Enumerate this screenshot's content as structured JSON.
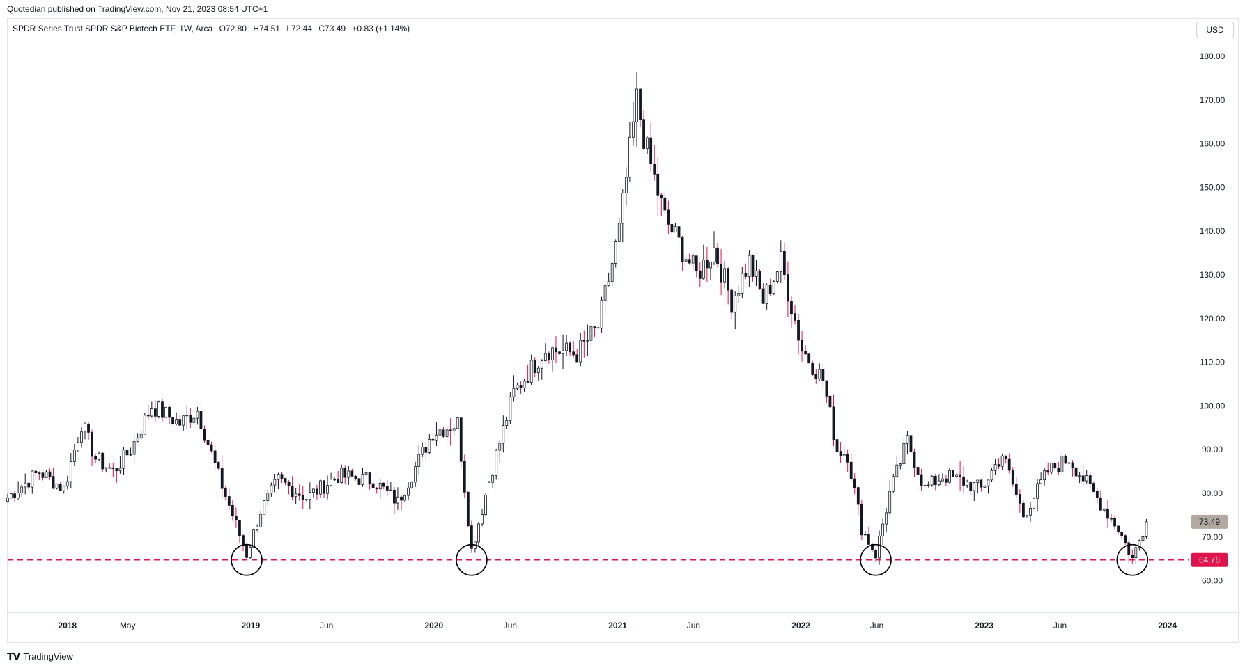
{
  "header": {
    "published": "Quotedian published on TradingView.com, Nov 21, 2023 08:54 UTC+1"
  },
  "symbol": {
    "name": "SPDR Series Trust SPDR S&P Biotech ETF, 1W, Arca",
    "open": "O72.80",
    "high": "H74.51",
    "low": "L72.44",
    "close": "C73.49",
    "change": "+0.83 (+1.14%)"
  },
  "currency": "USD",
  "footer": {
    "brand": "TradingView",
    "logo": "tradingview-logo-icon"
  },
  "colors": {
    "up": "#ffffff",
    "down": "#131722",
    "up_wick": "#131722",
    "accent": "#e0144c",
    "last_price_bg": "#b2aaa1"
  },
  "chart_data": {
    "type": "candlestick",
    "interval": "1W",
    "ylim": [
      55,
      185
    ],
    "y_ticks": [
      "180.00",
      "170.00",
      "160.00",
      "150.00",
      "140.00",
      "130.00",
      "120.00",
      "110.00",
      "100.00",
      "90.00",
      "80.00",
      "70.00",
      "60.00"
    ],
    "y_tick_values": [
      180,
      170,
      160,
      150,
      140,
      130,
      120,
      110,
      100,
      90,
      80,
      70,
      60
    ],
    "x_ticks": [
      "2018",
      "May",
      "2019",
      "Jun",
      "2020",
      "Jun",
      "2021",
      "Jun",
      "2022",
      "Jun",
      "2023",
      "Jun",
      "2024"
    ],
    "x_tick_dates": [
      "2018-01-01",
      "2018-05-01",
      "2019-01-01",
      "2019-06-01",
      "2020-01-01",
      "2020-06-01",
      "2021-01-01",
      "2021-06-01",
      "2022-01-01",
      "2022-06-01",
      "2023-01-01",
      "2023-06-01",
      "2024-01-01"
    ],
    "x_range": [
      "2017-09-04",
      "2024-02-12"
    ],
    "last_price": "73.49",
    "support": {
      "label": "64.76",
      "value": 64.76
    },
    "circled_lows": [
      "2018-12-24",
      "2020-03-16",
      "2022-05-30",
      "2023-10-23"
    ],
    "anchors": [
      [
        "2017-09-04",
        79
      ],
      [
        "2017-11-06",
        85
      ],
      [
        "2017-12-25",
        81
      ],
      [
        "2018-01-29",
        96
      ],
      [
        "2018-02-26",
        88
      ],
      [
        "2018-04-02",
        85
      ],
      [
        "2018-05-07",
        90
      ],
      [
        "2018-06-18",
        100
      ],
      [
        "2018-08-13",
        96
      ],
      [
        "2018-09-17",
        99
      ],
      [
        "2018-10-29",
        84
      ],
      [
        "2018-12-24",
        66
      ],
      [
        "2019-01-21",
        76
      ],
      [
        "2019-02-25",
        83
      ],
      [
        "2019-04-22",
        79
      ],
      [
        "2019-06-24",
        84
      ],
      [
        "2019-09-02",
        83
      ],
      [
        "2019-10-21",
        78
      ],
      [
        "2019-12-30",
        94
      ],
      [
        "2020-02-17",
        96
      ],
      [
        "2020-03-16",
        67
      ],
      [
        "2020-04-27",
        86
      ],
      [
        "2020-06-08",
        103
      ],
      [
        "2020-08-10",
        113
      ],
      [
        "2020-10-12",
        112
      ],
      [
        "2020-11-23",
        118
      ],
      [
        "2021-01-04",
        140
      ],
      [
        "2021-02-08",
        170
      ],
      [
        "2021-03-01",
        158
      ],
      [
        "2021-04-05",
        143
      ],
      [
        "2021-06-07",
        130
      ],
      [
        "2021-07-12",
        136
      ],
      [
        "2021-08-16",
        124
      ],
      [
        "2021-09-20",
        133
      ],
      [
        "2021-10-18",
        124
      ],
      [
        "2021-11-22",
        133
      ],
      [
        "2022-01-03",
        113
      ],
      [
        "2022-02-14",
        106
      ],
      [
        "2022-03-14",
        90
      ],
      [
        "2022-04-04",
        89
      ],
      [
        "2022-05-02",
        72
      ],
      [
        "2022-05-30",
        66
      ],
      [
        "2022-06-27",
        80
      ],
      [
        "2022-08-01",
        92
      ],
      [
        "2022-09-05",
        81
      ],
      [
        "2022-10-10",
        84
      ],
      [
        "2022-11-14",
        83
      ],
      [
        "2022-12-26",
        81
      ],
      [
        "2023-02-06",
        89
      ],
      [
        "2023-03-20",
        75
      ],
      [
        "2023-05-08",
        85
      ],
      [
        "2023-06-19",
        88
      ],
      [
        "2023-08-07",
        80
      ],
      [
        "2023-09-25",
        72
      ],
      [
        "2023-10-23",
        65
      ],
      [
        "2023-11-20",
        73.49
      ]
    ]
  }
}
